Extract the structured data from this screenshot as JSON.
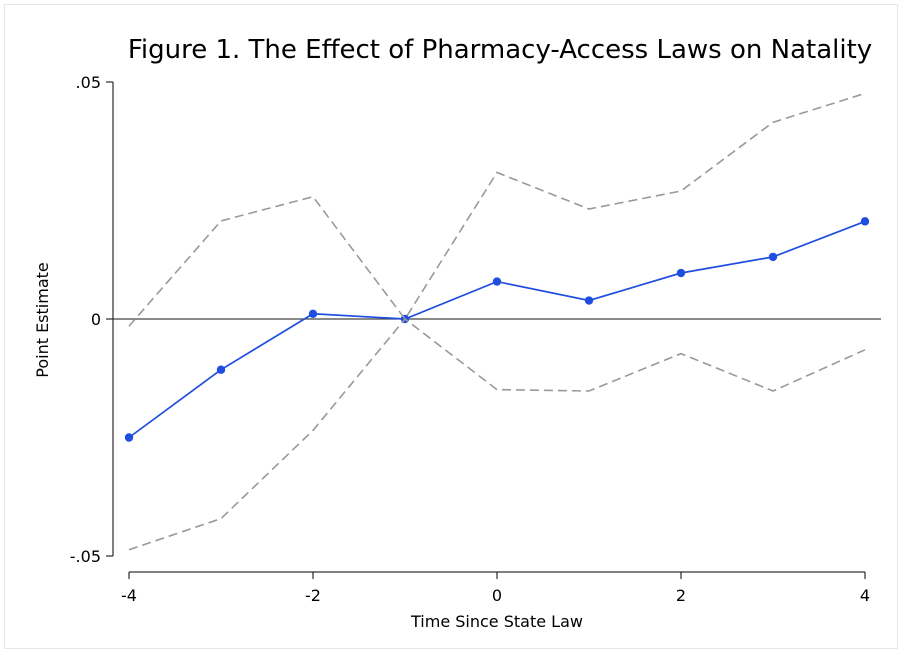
{
  "chart_data": {
    "type": "line",
    "title": "Figure 1. The Effect of Pharmacy-Access Laws on Natality",
    "xlabel": "Time Since State Law",
    "ylabel": "Point Estimate",
    "xlim": [
      -4,
      4
    ],
    "ylim": [
      -0.05,
      0.05
    ],
    "x_ticks": [
      -4,
      -2,
      0,
      2,
      4
    ],
    "x_tick_labels": [
      "-4",
      "-2",
      "0",
      "2",
      "4"
    ],
    "y_ticks": [
      -0.05,
      0,
      0.05
    ],
    "y_tick_labels": [
      "-.05",
      "0",
      ".05"
    ],
    "x": [
      -4,
      -3,
      -2,
      -1,
      0,
      1,
      2,
      3,
      4
    ],
    "reference_line": 0,
    "grid": false,
    "series": [
      {
        "role": "estimate",
        "values": [
          -0.025,
          -0.0107,
          0.0011,
          0,
          0.0079,
          0.0039,
          0.0097,
          0.0131,
          0.0206
        ],
        "color": "#1f4de0",
        "markers": true
      },
      {
        "role": "upper",
        "values": [
          -0.0015,
          0.0207,
          0.0258,
          0,
          0.0309,
          0.0232,
          0.027,
          0.0415,
          0.0476
        ],
        "color": "#999999",
        "dashed": true
      },
      {
        "role": "lower",
        "values": [
          -0.0487,
          -0.0421,
          -0.0235,
          0,
          -0.0149,
          -0.0152,
          -0.0073,
          -0.0152,
          -0.0065
        ],
        "color": "#999999",
        "dashed": true
      }
    ]
  }
}
